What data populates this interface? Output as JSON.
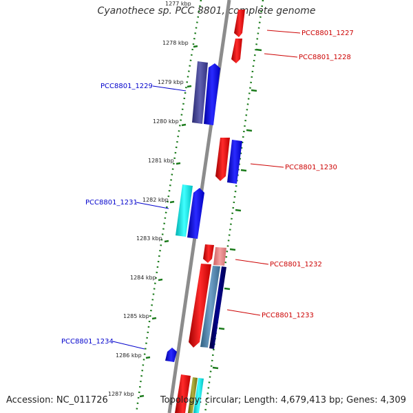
{
  "title": "Cyanothece sp. PCC 8801, complete genome",
  "footer": {
    "accession": "Accession: NC_011726",
    "topology": "Topology: circular; Length: 4,679,413 bp; Genes: 4,309"
  },
  "ticks": [
    "1277 kbp",
    "1278 kbp",
    "1279 kbp",
    "1280 kbp",
    "1281 kbp",
    "1282 kbp",
    "1283 kbp",
    "1284 kbp",
    "1285 kbp",
    "1286 kbp",
    "1287 kbp"
  ],
  "genes": [
    {
      "label": "PCC8801_1227",
      "strand": "+",
      "color": "#cc0000"
    },
    {
      "label": "PCC8801_1228",
      "strand": "+",
      "color": "#cc0000"
    },
    {
      "label": "PCC8801_1229",
      "strand": "-",
      "color": "#0000cc"
    },
    {
      "label": "PCC8801_1230",
      "strand": "+",
      "color": "#cc0000"
    },
    {
      "label": "PCC8801_1231",
      "strand": "-",
      "color": "#0000cc"
    },
    {
      "label": "PCC8801_1232",
      "strand": "+",
      "color": "#cc0000"
    },
    {
      "label": "PCC8801_1233",
      "strand": "+",
      "color": "#cc0000"
    },
    {
      "label": "PCC8801_1234",
      "strand": "-",
      "color": "#0000cc"
    }
  ],
  "colors": {
    "backbone": "#8c8c8c",
    "gc_track": "#1a7a1a",
    "forward_cds": "#ff0000",
    "reverse_cds": "#0000ff",
    "forward_label": "#cc0000",
    "reverse_label": "#0000cc"
  }
}
